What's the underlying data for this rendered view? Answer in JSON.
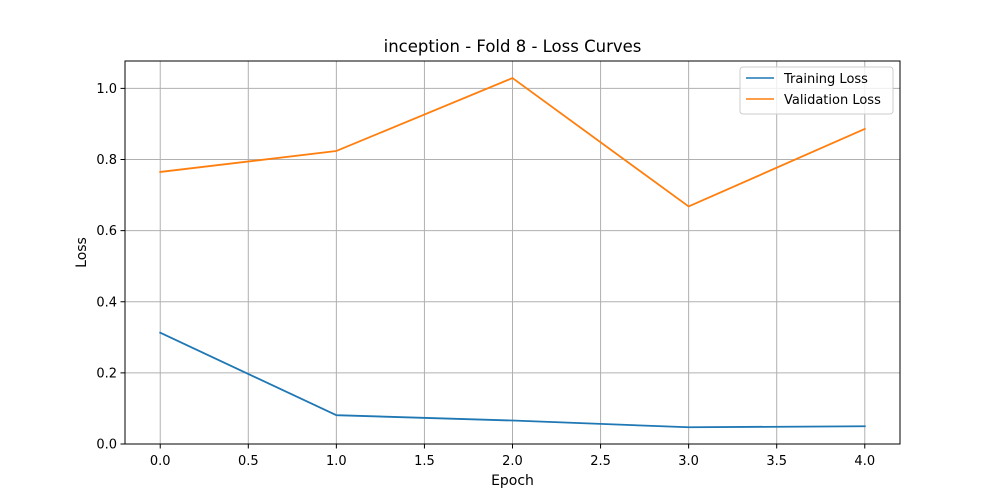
{
  "chart_data": {
    "type": "line",
    "title": "inception - Fold 8 - Loss Curves",
    "xlabel": "Epoch",
    "ylabel": "Loss",
    "x": [
      0,
      1,
      2,
      3,
      4
    ],
    "series": [
      {
        "name": "Training Loss",
        "values": [
          0.313,
          0.081,
          0.066,
          0.047,
          0.05
        ],
        "color": "#1f77b4"
      },
      {
        "name": "Validation Loss",
        "values": [
          0.765,
          0.824,
          1.029,
          0.668,
          0.886
        ],
        "color": "#ff7f0e"
      }
    ],
    "xlim": [
      -0.2,
      4.2
    ],
    "ylim": [
      0,
      1.077
    ],
    "xticks": [
      0.0,
      0.5,
      1.0,
      1.5,
      2.0,
      2.5,
      3.0,
      3.5,
      4.0
    ],
    "xtick_labels": [
      "0.0",
      "0.5",
      "1.0",
      "1.5",
      "2.0",
      "2.5",
      "3.0",
      "3.5",
      "4.0"
    ],
    "yticks": [
      0.0,
      0.2,
      0.4,
      0.6,
      0.8,
      1.0
    ],
    "ytick_labels": [
      "0.0",
      "0.2",
      "0.4",
      "0.6",
      "0.8",
      "1.0"
    ],
    "grid": true,
    "legend_position": "top-right"
  }
}
